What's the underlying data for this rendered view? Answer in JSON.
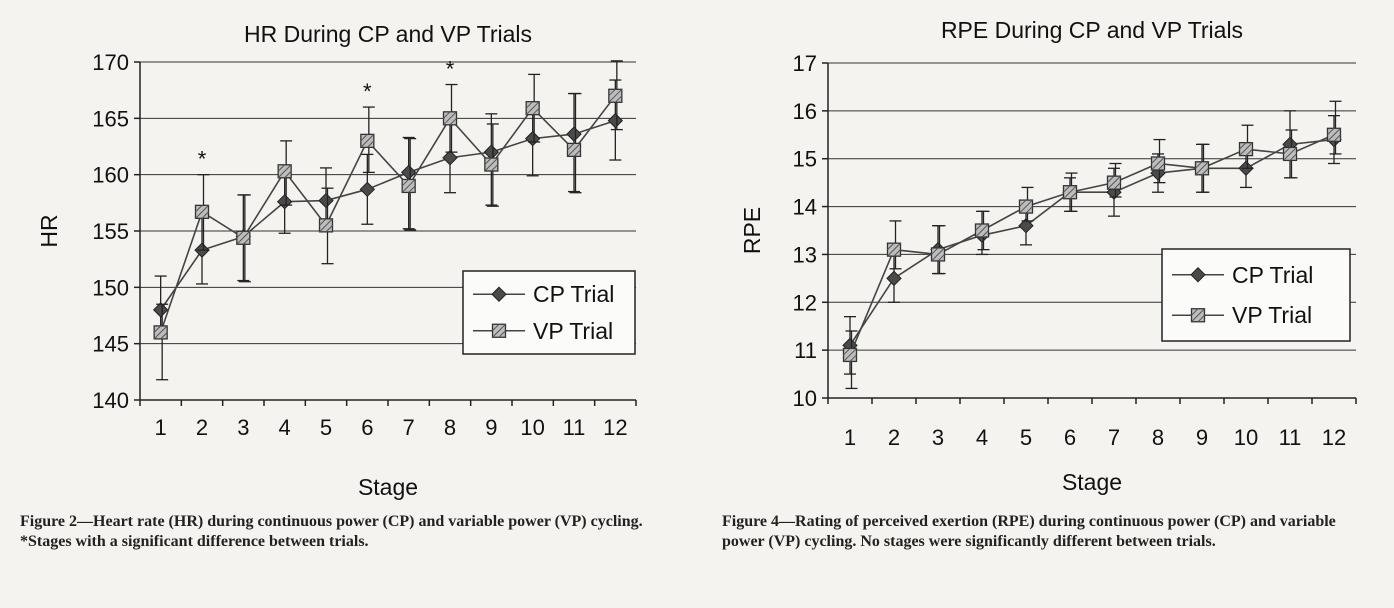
{
  "charts": [
    {
      "type": "line",
      "title": "HR During CP and VP Trials",
      "xlabel": "Stage",
      "ylabel": "HR",
      "ylim": [
        140,
        170
      ],
      "yticks": [
        140,
        145,
        150,
        155,
        160,
        165,
        170
      ],
      "categories": [
        "1",
        "2",
        "3",
        "4",
        "5",
        "6",
        "7",
        "8",
        "9",
        "10",
        "11",
        "12"
      ],
      "grid": true,
      "legend_position": "bottom-right",
      "significance_marker": "*",
      "significant_stages": [
        "2",
        "6",
        "8"
      ],
      "series": [
        {
          "name": "CP Trial",
          "marker": "diamond",
          "values": [
            148.0,
            153.3,
            154.5,
            157.6,
            157.7,
            158.7,
            160.2,
            161.5,
            162.0,
            163.2,
            163.6,
            164.8
          ],
          "err_low": [
            145.6,
            150.3,
            150.6,
            154.8,
            155.2,
            155.6,
            155.2,
            158.4,
            157.3,
            159.9,
            158.5,
            161.3
          ],
          "err_high": [
            151.0,
            156.4,
            158.2,
            160.5,
            160.6,
            161.8,
            163.3,
            164.5,
            165.4,
            166.4,
            167.2,
            168.4
          ]
        },
        {
          "name": "VP Trial",
          "marker": "square",
          "values": [
            146.0,
            156.7,
            154.4,
            160.3,
            155.5,
            163.0,
            159.0,
            165.0,
            160.9,
            165.9,
            162.2,
            167.0
          ],
          "err_low": [
            141.8,
            153.3,
            150.5,
            157.3,
            152.1,
            160.2,
            155.1,
            162.0,
            157.2,
            162.9,
            158.4,
            164.0
          ],
          "err_high": [
            148.5,
            160.0,
            158.2,
            163.0,
            158.8,
            166.0,
            163.2,
            168.0,
            164.5,
            168.9,
            167.2,
            170.1
          ]
        }
      ]
    },
    {
      "type": "line",
      "title": "RPE During CP and VP Trials",
      "xlabel": "Stage",
      "ylabel": "RPE",
      "ylim": [
        10,
        17
      ],
      "yticks": [
        10,
        11,
        12,
        13,
        14,
        15,
        16,
        17
      ],
      "categories": [
        "1",
        "2",
        "3",
        "4",
        "5",
        "6",
        "7",
        "8",
        "9",
        "10",
        "11",
        "12"
      ],
      "grid": true,
      "legend_position": "right",
      "series": [
        {
          "name": "CP Trial",
          "marker": "diamond",
          "values": [
            11.1,
            12.5,
            13.1,
            13.4,
            13.6,
            14.3,
            14.3,
            14.7,
            14.8,
            14.8,
            15.3,
            15.4
          ],
          "err_low": [
            10.5,
            12.0,
            12.6,
            13.0,
            13.2,
            13.9,
            13.8,
            14.3,
            14.3,
            14.4,
            14.6,
            14.9
          ],
          "err_high": [
            11.7,
            13.0,
            13.6,
            13.9,
            14.0,
            14.6,
            14.8,
            15.1,
            15.3,
            15.2,
            16.0,
            15.9
          ]
        },
        {
          "name": "VP Trial",
          "marker": "square",
          "values": [
            10.9,
            13.1,
            13.0,
            13.5,
            14.0,
            14.3,
            14.5,
            14.9,
            14.8,
            15.2,
            15.1,
            15.5
          ],
          "err_low": [
            10.2,
            12.7,
            12.6,
            13.1,
            13.7,
            13.9,
            14.2,
            14.5,
            14.3,
            14.8,
            14.6,
            15.1
          ],
          "err_high": [
            11.4,
            13.7,
            13.6,
            13.9,
            14.4,
            14.7,
            14.9,
            15.4,
            15.3,
            15.7,
            15.6,
            16.2
          ]
        }
      ]
    }
  ],
  "captions": [
    "Figure 2—Heart rate (HR) during continuous power (CP) and variable power (VP) cycling. *Stages with a significant difference between trials.",
    "Figure 4—Rating of perceived exertion (RPE) during continuous power (CP) and variable power (VP) cycling. No stages were significantly different between trials."
  ]
}
